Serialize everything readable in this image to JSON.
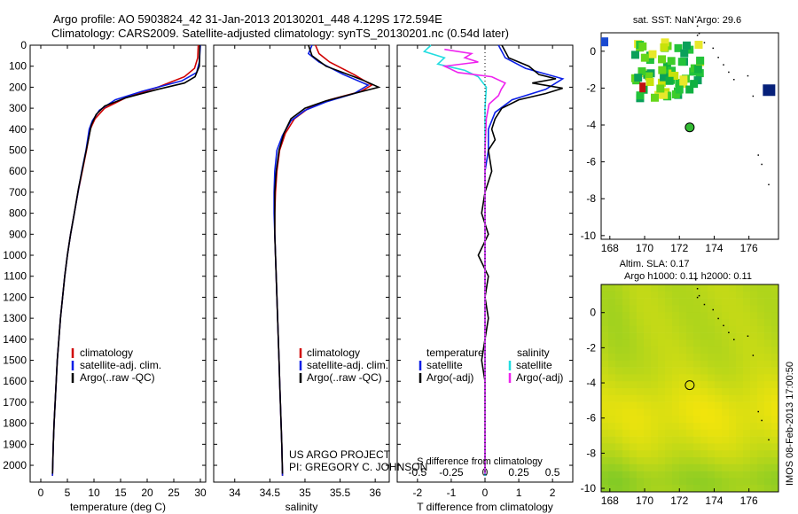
{
  "header": {
    "line1": "Argo profile: AO 5903824_42 31-Jan-2013 20130201_448 4.129S 172.594E",
    "line2": "Climatology: CARS2009. Satellite-adjusted climatology: synTS_20130201.nc (0.54d later)"
  },
  "side_stamp": "IMOS 08-Feb-2013 17:00:50",
  "project": {
    "line1": "US ARGO PROJECT",
    "line2": "PI: GREGORY C. JOHNSON"
  },
  "colors": {
    "climatology": "#d00000",
    "satellite": "#0a1ee6",
    "argo": "#000000",
    "sal_sat": "#22dde0",
    "sal_argo": "#ee22ee",
    "sst_marker": "#33bb33"
  },
  "chart_data": [
    {
      "type": "line",
      "id": "temperature",
      "xlabel": "temperature (deg C)",
      "ylabel": "",
      "xlim": [
        -2,
        31
      ],
      "ylim": [
        2080,
        0
      ],
      "y_inverted": true,
      "xticks": [
        0,
        5,
        10,
        15,
        20,
        25,
        30
      ],
      "yticks": [
        0,
        100,
        200,
        300,
        400,
        500,
        600,
        700,
        800,
        900,
        1000,
        1100,
        1200,
        1300,
        1400,
        1500,
        1600,
        1700,
        1800,
        1900,
        2000
      ],
      "legend": [
        "climatology",
        "satellite-adj. clim.",
        "Argo(..raw -QC)"
      ],
      "series": [
        {
          "name": "climatology",
          "color": "#d00000",
          "points": [
            [
              29.6,
              0
            ],
            [
              29.5,
              60
            ],
            [
              28.9,
              110
            ],
            [
              27,
              150
            ],
            [
              22,
              200
            ],
            [
              16,
              250
            ],
            [
              12,
              300
            ],
            [
              10.2,
              350
            ],
            [
              9.3,
              400
            ],
            [
              8.6,
              500
            ],
            [
              7.8,
              600
            ],
            [
              7,
              700
            ],
            [
              6.3,
              800
            ],
            [
              5.6,
              900
            ],
            [
              5,
              1000
            ],
            [
              4.5,
              1100
            ],
            [
              4.1,
              1200
            ],
            [
              3.7,
              1300
            ],
            [
              3.4,
              1400
            ],
            [
              3.1,
              1500
            ],
            [
              2.9,
              1600
            ],
            [
              2.7,
              1700
            ],
            [
              2.5,
              1800
            ],
            [
              2.35,
              1900
            ],
            [
              2.2,
              2050
            ]
          ]
        },
        {
          "name": "satellite-adj. clim.",
          "color": "#0a1ee6",
          "points": [
            [
              30,
              0
            ],
            [
              29.8,
              80
            ],
            [
              29.3,
              130
            ],
            [
              26.5,
              170
            ],
            [
              19,
              220
            ],
            [
              14,
              260
            ],
            [
              11,
              310
            ],
            [
              9.7,
              360
            ],
            [
              9.1,
              400
            ],
            [
              8.5,
              500
            ],
            [
              7.7,
              600
            ],
            [
              7,
              700
            ],
            [
              6.3,
              800
            ],
            [
              5.6,
              900
            ],
            [
              5,
              1000
            ],
            [
              4.5,
              1100
            ],
            [
              4.1,
              1200
            ],
            [
              3.7,
              1300
            ],
            [
              3.4,
              1400
            ],
            [
              3.1,
              1500
            ],
            [
              2.9,
              1600
            ],
            [
              2.7,
              1700
            ],
            [
              2.5,
              1800
            ],
            [
              2.35,
              1900
            ],
            [
              2.2,
              2050
            ]
          ]
        },
        {
          "name": "Argo(..raw -QC)",
          "color": "#000000",
          "points": [
            [
              29.9,
              0
            ],
            [
              29.8,
              100
            ],
            [
              29,
              150
            ],
            [
              27,
              180
            ],
            [
              22,
              210
            ],
            [
              16,
              250
            ],
            [
              12,
              290
            ],
            [
              10.4,
              330
            ],
            [
              9.5,
              380
            ],
            [
              8.7,
              480
            ],
            [
              7.9,
              580
            ],
            [
              7.1,
              680
            ],
            [
              6.3,
              800
            ],
            [
              5.6,
              900
            ],
            [
              5,
              1000
            ],
            [
              4.5,
              1100
            ],
            [
              4.1,
              1200
            ],
            [
              3.7,
              1300
            ],
            [
              3.4,
              1400
            ],
            [
              3.1,
              1500
            ],
            [
              2.9,
              1600
            ],
            [
              2.7,
              1700
            ],
            [
              2.5,
              1800
            ],
            [
              2.35,
              1900
            ],
            [
              2.2,
              2040
            ]
          ]
        }
      ]
    },
    {
      "type": "line",
      "id": "salinity",
      "xlabel": "salinity",
      "ylabel": "",
      "xlim": [
        33.7,
        36.2
      ],
      "ylim": [
        2080,
        0
      ],
      "y_inverted": true,
      "xticks": [
        34,
        34.5,
        35,
        35.5,
        36
      ],
      "legend": [
        "climatology",
        "satellite-adj. clim.",
        "Argo(..raw -QC)"
      ],
      "series": [
        {
          "name": "climatology",
          "color": "#d00000",
          "points": [
            [
              35.15,
              0
            ],
            [
              35.2,
              40
            ],
            [
              35.35,
              80
            ],
            [
              35.7,
              140
            ],
            [
              35.95,
              190
            ],
            [
              35.8,
              220
            ],
            [
              35.35,
              260
            ],
            [
              35.05,
              300
            ],
            [
              34.85,
              350
            ],
            [
              34.72,
              420
            ],
            [
              34.64,
              500
            ],
            [
              34.6,
              600
            ],
            [
              34.58,
              700
            ],
            [
              34.57,
              800
            ],
            [
              34.57,
              900
            ],
            [
              34.58,
              1000
            ],
            [
              34.59,
              1100
            ],
            [
              34.6,
              1200
            ],
            [
              34.61,
              1300
            ],
            [
              34.62,
              1400
            ],
            [
              34.63,
              1500
            ],
            [
              34.64,
              1600
            ],
            [
              34.65,
              1700
            ],
            [
              34.66,
              1800
            ],
            [
              34.67,
              1900
            ],
            [
              34.68,
              2050
            ]
          ]
        },
        {
          "name": "satellite-adj. clim.",
          "color": "#0a1ee6",
          "points": [
            [
              35.1,
              0
            ],
            [
              35.05,
              40
            ],
            [
              35.2,
              80
            ],
            [
              35.55,
              140
            ],
            [
              35.9,
              190
            ],
            [
              35.7,
              230
            ],
            [
              35.3,
              270
            ],
            [
              35,
              310
            ],
            [
              34.8,
              360
            ],
            [
              34.68,
              430
            ],
            [
              34.6,
              500
            ],
            [
              34.57,
              600
            ],
            [
              34.56,
              700
            ],
            [
              34.56,
              800
            ],
            [
              34.57,
              900
            ],
            [
              34.58,
              1000
            ],
            [
              34.59,
              1100
            ],
            [
              34.6,
              1200
            ],
            [
              34.61,
              1300
            ],
            [
              34.62,
              1400
            ],
            [
              34.63,
              1500
            ],
            [
              34.64,
              1600
            ],
            [
              34.65,
              1700
            ],
            [
              34.66,
              1800
            ],
            [
              34.67,
              1900
            ],
            [
              34.68,
              2050
            ]
          ]
        },
        {
          "name": "Argo(..raw -QC)",
          "color": "#000000",
          "points": [
            [
              35.05,
              0
            ],
            [
              35.1,
              50
            ],
            [
              35.3,
              100
            ],
            [
              35.7,
              150
            ],
            [
              35.85,
              170
            ],
            [
              36.05,
              200
            ],
            [
              35.7,
              230
            ],
            [
              35.3,
              265
            ],
            [
              35,
              300
            ],
            [
              34.8,
              350
            ],
            [
              34.7,
              420
            ],
            [
              34.63,
              500
            ],
            [
              34.59,
              600
            ],
            [
              34.57,
              700
            ],
            [
              34.57,
              800
            ],
            [
              34.57,
              900
            ],
            [
              34.58,
              1000
            ],
            [
              34.59,
              1100
            ],
            [
              34.6,
              1200
            ],
            [
              34.61,
              1300
            ],
            [
              34.62,
              1400
            ],
            [
              34.63,
              1500
            ],
            [
              34.64,
              1600
            ],
            [
              34.65,
              1700
            ],
            [
              34.66,
              1800
            ],
            [
              34.67,
              1900
            ],
            [
              34.68,
              2040
            ]
          ]
        }
      ]
    },
    {
      "type": "line",
      "id": "difference",
      "xlabel": "T difference from climatology",
      "xlabel_top": "S difference from climatology",
      "xlim": [
        -2.6,
        2.6
      ],
      "ylim": [
        2080,
        0
      ],
      "y_inverted": true,
      "xticks": [
        -2,
        -1,
        0,
        1,
        2
      ],
      "sticks": [
        -0.5,
        -0.25,
        0,
        0.25,
        0.5
      ],
      "legend": {
        "temperature": [
          "satellite",
          "Argo(-adj)"
        ],
        "salinity": [
          "satellite",
          "Argo(-adj)"
        ]
      },
      "legend_titles": {
        "temperature": "temperature",
        "salinity": "salinity"
      },
      "series": [
        {
          "name": "temperature satellite",
          "color": "#0a1ee6",
          "points": [
            [
              0.4,
              0
            ],
            [
              0.6,
              60
            ],
            [
              1.2,
              110
            ],
            [
              2.3,
              160
            ],
            [
              1.8,
              210
            ],
            [
              0.8,
              260
            ],
            [
              0.3,
              320
            ],
            [
              0.1,
              400
            ],
            [
              0.1,
              500
            ],
            [
              0,
              600
            ],
            [
              0,
              800
            ],
            [
              0,
              1000
            ],
            [
              0,
              1200
            ],
            [
              0,
              1400
            ],
            [
              0,
              1600
            ],
            [
              0,
              2050
            ]
          ]
        },
        {
          "name": "temperature Argo(-adj)",
          "color": "#000000",
          "points": [
            [
              0.5,
              0
            ],
            [
              0.7,
              60
            ],
            [
              1.3,
              100
            ],
            [
              1.6,
              140
            ],
            [
              2.1,
              160
            ],
            [
              1.4,
              180
            ],
            [
              2.3,
              205
            ],
            [
              1.8,
              230
            ],
            [
              1,
              260
            ],
            [
              0.5,
              300
            ],
            [
              0.3,
              350
            ],
            [
              0.2,
              400
            ],
            [
              0.3,
              450
            ],
            [
              0.1,
              500
            ],
            [
              0.2,
              600
            ],
            [
              0,
              700
            ],
            [
              -0.1,
              800
            ],
            [
              0.1,
              900
            ],
            [
              -0.2,
              1000
            ],
            [
              0.1,
              1100
            ],
            [
              0,
              1200
            ],
            [
              0.1,
              1300
            ],
            [
              0,
              1400
            ],
            [
              -0.1,
              1500
            ],
            [
              0,
              1600
            ],
            [
              0,
              1800
            ],
            [
              0,
              2040
            ]
          ]
        },
        {
          "name": "salinity satellite",
          "color": "#22dde0",
          "units": "salinity",
          "points": [
            [
              -0.4,
              0
            ],
            [
              -0.45,
              30
            ],
            [
              -0.3,
              60
            ],
            [
              -0.35,
              90
            ],
            [
              -0.15,
              120
            ],
            [
              -0.05,
              150
            ],
            [
              0.01,
              200
            ],
            [
              0,
              300
            ],
            [
              0,
              500
            ],
            [
              0,
              1000
            ],
            [
              0,
              1500
            ],
            [
              0,
              2050
            ]
          ]
        },
        {
          "name": "salinity Argo(-adj)",
          "color": "#ee22ee",
          "units": "salinity",
          "points": [
            [
              -0.3,
              20
            ],
            [
              -0.1,
              40
            ],
            [
              -0.15,
              60
            ],
            [
              -0.05,
              80
            ],
            [
              -0.3,
              100
            ],
            [
              -0.2,
              130
            ],
            [
              0.05,
              150
            ],
            [
              0.15,
              180
            ],
            [
              0.12,
              210
            ],
            [
              0.1,
              240
            ],
            [
              0.03,
              280
            ],
            [
              0.01,
              350
            ],
            [
              0,
              500
            ],
            [
              0,
              1000
            ],
            [
              0,
              2040
            ]
          ]
        }
      ]
    },
    {
      "type": "heatmap",
      "id": "sst-map",
      "title": "sat. SST: NaN Argo: 29.6",
      "xlim": [
        167.5,
        177.7
      ],
      "ylim": [
        -10.2,
        1.0
      ],
      "xticks": [
        168,
        170,
        172,
        174,
        176
      ],
      "yticks": [
        -10,
        -8,
        -6,
        -4,
        -2,
        0
      ],
      "argo_position": [
        172.594,
        -4.129
      ]
    },
    {
      "type": "heatmap",
      "id": "sla-map",
      "title": "Altim. SLA: 0.17",
      "subtitle": "Argo h1000: 0.11 h2000: 0.11",
      "xlim": [
        167.5,
        177.7
      ],
      "ylim": [
        -10.2,
        1.6
      ],
      "xticks": [
        168,
        170,
        172,
        174,
        176
      ],
      "yticks": [
        -10,
        -8,
        -6,
        -4,
        -2,
        0
      ],
      "argo_position": [
        172.594,
        -4.129
      ]
    }
  ]
}
